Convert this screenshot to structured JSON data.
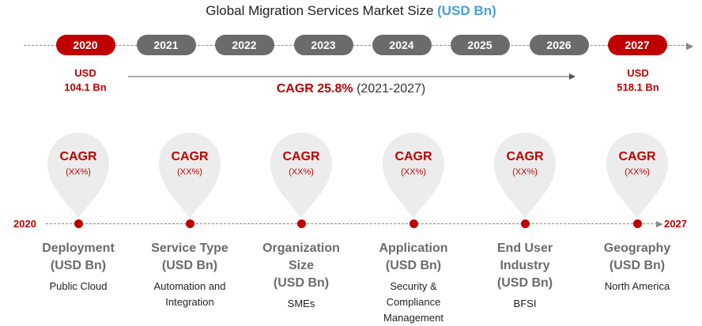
{
  "title": {
    "text": "Global Migration Services Market Size ",
    "unit": "(USD Bn)"
  },
  "timeline": {
    "years": [
      "2020",
      "2021",
      "2022",
      "2023",
      "2024",
      "2025",
      "2026",
      "2027"
    ],
    "highlight": [
      "2020",
      "2027"
    ]
  },
  "start_value": {
    "line1": "USD",
    "line2": "104.1 Bn"
  },
  "end_value": {
    "line1": "USD",
    "line2": "518.1 Bn"
  },
  "cagr_main": {
    "label": "CAGR 25.8%",
    "period": " (2021-2027)"
  },
  "segment_axis": {
    "start": "2020",
    "end": "2027"
  },
  "segments": [
    {
      "cagr": "CAGR",
      "cagr_value": "(XX%)",
      "title_lines": [
        "Deployment",
        "(USD Bn)"
      ],
      "value_lines": [
        "Public Cloud"
      ]
    },
    {
      "cagr": "CAGR",
      "cagr_value": "(XX%)",
      "title_lines": [
        "Service Type",
        "(USD Bn)"
      ],
      "value_lines": [
        "Automation and",
        "Integration"
      ]
    },
    {
      "cagr": "CAGR",
      "cagr_value": "(XX%)",
      "title_lines": [
        "Organization",
        "Size",
        "(USD Bn)"
      ],
      "value_lines": [
        "SMEs"
      ]
    },
    {
      "cagr": "CAGR",
      "cagr_value": "(XX%)",
      "title_lines": [
        "Application",
        "(USD Bn)"
      ],
      "value_lines": [
        "Security &",
        "Compliance",
        "Management"
      ]
    },
    {
      "cagr": "CAGR",
      "cagr_value": "(XX%)",
      "title_lines": [
        "End User",
        "Industry",
        "(USD Bn)"
      ],
      "value_lines": [
        "BFSI"
      ]
    },
    {
      "cagr": "CAGR",
      "cagr_value": "(XX%)",
      "title_lines": [
        "Geography",
        "(USD Bn)"
      ],
      "value_lines": [
        "North America"
      ]
    }
  ],
  "chart_data": {
    "type": "table",
    "title": "Global Migration Services Market Size (USD Bn)",
    "x": [
      "2020",
      "2027"
    ],
    "values": [
      104.1,
      518.1
    ],
    "unit": "USD Bn",
    "cagr_percent": 25.8,
    "cagr_period": "2021-2027"
  },
  "colors": {
    "accent_red": "#c00000",
    "pill_grey": "#6b6b6b",
    "unit_blue": "#4a9fd8",
    "pin_grey": "#ececec"
  }
}
